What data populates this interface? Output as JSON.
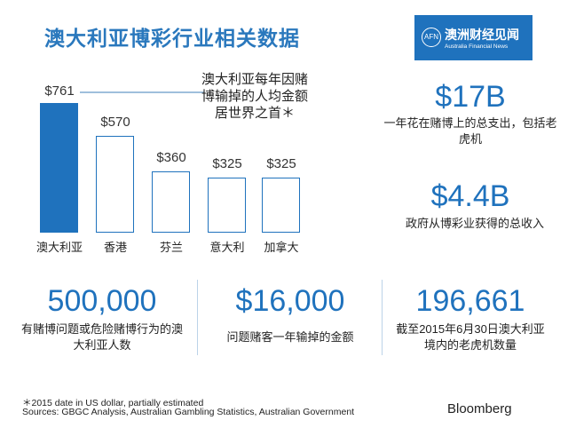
{
  "title": "澳大利亚博彩行业相关数据",
  "logo": {
    "mark": "AFN",
    "cn": "澳洲财经见闻",
    "en": "Australia Financial News"
  },
  "chart_data": {
    "type": "bar",
    "categories": [
      "澳大利亚",
      "香港",
      "芬兰",
      "意大利",
      "加拿大"
    ],
    "values": [
      761,
      570,
      360,
      325,
      325
    ],
    "value_labels": [
      "$761",
      "$570",
      "$360",
      "$325",
      "$325"
    ],
    "highlight_color": "#1f72bd",
    "annotation": "澳大利亚每年因赌博输掉的人均金额居世界之首＊"
  },
  "stats": [
    {
      "value": "$17B",
      "text": "一年花在赌博上的总支出，包括老虎机"
    },
    {
      "value": "$4.4B",
      "text": "政府从博彩业获得的总收入"
    },
    {
      "value": "500,000",
      "text": "有赌博问题或危险赌博行为的澳大利亚人数"
    },
    {
      "value": "$16,000",
      "text": "问题赌客一年输掉的金额"
    },
    {
      "value": "196,661",
      "text": "截至2015年6月30日澳大利亚境内的老虎机数量"
    }
  ],
  "footnote": "＊2015 date in US dollar, partially estimated",
  "sources": "Sources: GBGC Analysis, Australian Gambling Statistics, Australian Government",
  "brand": "Bloomberg"
}
